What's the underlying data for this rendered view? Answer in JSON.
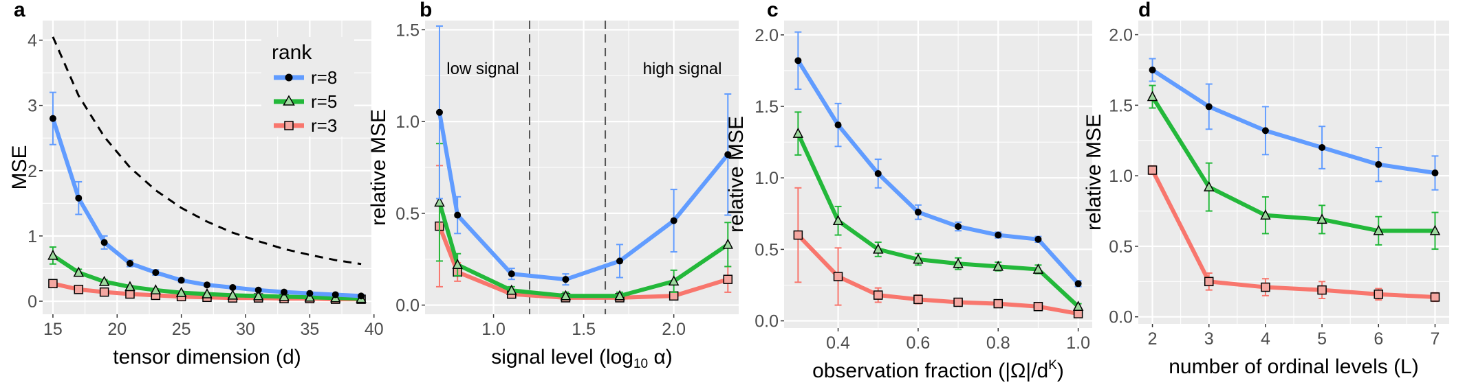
{
  "legend": {
    "title": "rank",
    "entries": [
      "r=8",
      "r=5",
      "r=3"
    ]
  },
  "colors": {
    "r=8": "#619CFF",
    "r=5": "#23B83A",
    "r=3": "#F8766D",
    "panel": "#EBEBEB",
    "grid": "#FFFFFF"
  },
  "chart_data": [
    {
      "type": "line",
      "panel": "a",
      "xlabel": "tensor dimension (d)",
      "ylabel": "MSE",
      "xlim": [
        14.2,
        39.8
      ],
      "ylim": [
        -0.2,
        4.3
      ],
      "xticks": [
        15,
        20,
        25,
        30,
        35,
        40
      ],
      "yticks": [
        0,
        1,
        2,
        3,
        4
      ],
      "x": [
        15,
        17,
        19,
        21,
        23,
        25,
        27,
        29,
        31,
        33,
        35,
        37,
        39
      ],
      "series": [
        {
          "name": "r=8",
          "values": [
            2.8,
            1.58,
            0.9,
            0.58,
            0.44,
            0.32,
            0.25,
            0.21,
            0.17,
            0.14,
            0.12,
            0.1,
            0.08
          ],
          "err": [
            0.4,
            0.25,
            0.1,
            0.05,
            0.04,
            0.03,
            0.02,
            0.02,
            0.02,
            0.02,
            0.02,
            0.02,
            0.02
          ]
        },
        {
          "name": "r=5",
          "values": [
            0.7,
            0.44,
            0.3,
            0.22,
            0.17,
            0.13,
            0.11,
            0.09,
            0.08,
            0.07,
            0.06,
            0.05,
            0.04
          ],
          "err": [
            0.13,
            0.05,
            0.03,
            0.02,
            0.02,
            0.02,
            0.02,
            0.02,
            0.02,
            0.02,
            0.02,
            0.02,
            0.02
          ]
        },
        {
          "name": "r=3",
          "values": [
            0.27,
            0.18,
            0.14,
            0.11,
            0.09,
            0.07,
            0.06,
            0.05,
            0.05,
            0.04,
            0.04,
            0.03,
            0.03
          ],
          "err": [
            0.03,
            0.02,
            0.02,
            0.02,
            0.02,
            0.02,
            0.02,
            0.02,
            0.02,
            0.02,
            0.02,
            0.02,
            0.02
          ]
        }
      ],
      "reference_curve": {
        "style": "dashed",
        "x": [
          15,
          17,
          19,
          21,
          23,
          25,
          27,
          29,
          31,
          33,
          35,
          37,
          39
        ],
        "values": [
          4.05,
          3.15,
          2.52,
          2.05,
          1.7,
          1.43,
          1.22,
          1.05,
          0.92,
          0.8,
          0.71,
          0.63,
          0.57
        ]
      },
      "legend_position": "top-right",
      "grid": true
    },
    {
      "type": "line",
      "panel": "b",
      "xlabel": "signal level (log",
      "xlabel_sub": "10",
      "xlabel_tail": " α)",
      "ylabel": "relative MSE",
      "xlim": [
        0.62,
        2.36
      ],
      "ylim": [
        -0.05,
        1.55
      ],
      "xticks": [
        1.0,
        1.5,
        2.0
      ],
      "yticks": [
        0.0,
        0.5,
        1.0,
        1.5
      ],
      "x": [
        0.7,
        0.8,
        1.1,
        1.4,
        1.7,
        2.0,
        2.3
      ],
      "series": [
        {
          "name": "r=8",
          "values": [
            1.05,
            0.49,
            0.17,
            0.14,
            0.24,
            0.46,
            0.82
          ],
          "err": [
            0.47,
            0.1,
            0.03,
            0.03,
            0.09,
            0.17,
            0.33
          ]
        },
        {
          "name": "r=5",
          "values": [
            0.56,
            0.22,
            0.08,
            0.05,
            0.05,
            0.13,
            0.33
          ],
          "err": [
            0.32,
            0.06,
            0.02,
            0.02,
            0.02,
            0.06,
            0.12
          ]
        },
        {
          "name": "r=3",
          "values": [
            0.43,
            0.18,
            0.06,
            0.04,
            0.04,
            0.05,
            0.14
          ],
          "err": [
            0.33,
            0.05,
            0.02,
            0.02,
            0.02,
            0.02,
            0.07
          ]
        }
      ],
      "vlines": [
        1.2,
        1.62
      ],
      "annotations": [
        "low signal",
        "high signal"
      ],
      "grid": true
    },
    {
      "type": "line",
      "panel": "c",
      "xlabel": "observation fraction (|Ω|/d",
      "xlabel_sup": "K",
      "xlabel_tail": ")",
      "ylabel": "relative MSE",
      "xlim": [
        0.265,
        1.035
      ],
      "ylim": [
        -0.05,
        2.1
      ],
      "xticks": [
        0.4,
        0.6,
        0.8,
        1.0
      ],
      "yticks": [
        0.0,
        0.5,
        1.0,
        1.5,
        2.0
      ],
      "x": [
        0.3,
        0.4,
        0.5,
        0.6,
        0.7,
        0.8,
        0.9,
        1.0
      ],
      "series": [
        {
          "name": "r=8",
          "values": [
            1.82,
            1.37,
            1.03,
            0.76,
            0.66,
            0.6,
            0.57,
            0.26
          ],
          "err": [
            0.2,
            0.15,
            0.1,
            0.05,
            0.03,
            0.02,
            0.02,
            0.02
          ]
        },
        {
          "name": "r=5",
          "values": [
            1.31,
            0.7,
            0.5,
            0.43,
            0.4,
            0.38,
            0.36,
            0.1
          ],
          "err": [
            0.15,
            0.1,
            0.05,
            0.04,
            0.04,
            0.03,
            0.03,
            0.02
          ]
        },
        {
          "name": "r=3",
          "values": [
            0.6,
            0.31,
            0.18,
            0.15,
            0.13,
            0.12,
            0.1,
            0.05
          ],
          "err": [
            0.33,
            0.2,
            0.05,
            0.03,
            0.02,
            0.02,
            0.02,
            0.02
          ]
        }
      ],
      "grid": true
    },
    {
      "type": "line",
      "panel": "d",
      "xlabel": "number of ordinal levels (L)",
      "ylabel": "relative MSE",
      "xlim": [
        1.75,
        7.25
      ],
      "ylim": [
        -0.05,
        2.1
      ],
      "xticks": [
        2,
        3,
        4,
        5,
        6,
        7
      ],
      "yticks": [
        0.0,
        0.5,
        1.0,
        1.5,
        2.0
      ],
      "x": [
        2,
        3,
        4,
        5,
        6,
        7
      ],
      "series": [
        {
          "name": "r=8",
          "values": [
            1.75,
            1.49,
            1.32,
            1.2,
            1.08,
            1.02
          ],
          "err": [
            0.08,
            0.16,
            0.17,
            0.15,
            0.12,
            0.12
          ]
        },
        {
          "name": "r=5",
          "values": [
            1.56,
            0.92,
            0.72,
            0.69,
            0.61,
            0.61
          ],
          "err": [
            0.08,
            0.17,
            0.13,
            0.1,
            0.1,
            0.13
          ]
        },
        {
          "name": "r=3",
          "values": [
            1.04,
            0.25,
            0.21,
            0.19,
            0.16,
            0.14
          ],
          "err": [
            0.03,
            0.06,
            0.06,
            0.06,
            0.04,
            0.03
          ]
        }
      ],
      "grid": true
    }
  ]
}
